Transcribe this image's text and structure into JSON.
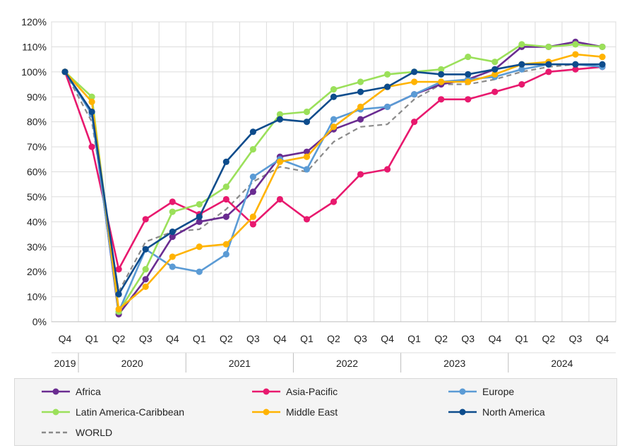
{
  "chart_data": {
    "type": "line",
    "ylim": [
      0,
      120
    ],
    "ytick_labels": [
      "0%",
      "10%",
      "20%",
      "30%",
      "40%",
      "50%",
      "60%",
      "70%",
      "80%",
      "90%",
      "100%",
      "110%",
      "120%"
    ],
    "quarter_labels": [
      "Q4",
      "Q1",
      "Q2",
      "Q3",
      "Q4",
      "Q1",
      "Q2",
      "Q3",
      "Q4",
      "Q1",
      "Q2",
      "Q3",
      "Q4",
      "Q1",
      "Q2",
      "Q3",
      "Q4",
      "Q1",
      "Q2",
      "Q3",
      "Q4"
    ],
    "year_labels": [
      "2019",
      "2020",
      "2021",
      "2022",
      "2023",
      "2024"
    ],
    "grid": true,
    "legend_position": "bottom",
    "series": [
      {
        "name": "Africa",
        "color": "#6a2c91",
        "dashed": false,
        "marker": true,
        "values": [
          100,
          84,
          3,
          17,
          34,
          40,
          42,
          52,
          66,
          68,
          77,
          81,
          86,
          91,
          95,
          97,
          101,
          110,
          110,
          112,
          110
        ]
      },
      {
        "name": "Asia-Pacific",
        "color": "#e8196e",
        "dashed": false,
        "marker": true,
        "values": [
          100,
          70,
          21,
          41,
          48,
          43,
          49,
          39,
          49,
          41,
          48,
          59,
          61,
          80,
          89,
          89,
          92,
          95,
          100,
          101,
          102
        ]
      },
      {
        "name": "Europe",
        "color": "#5b9bd5",
        "dashed": false,
        "marker": true,
        "values": [
          100,
          83,
          4,
          29,
          22,
          20,
          27,
          58,
          65,
          61,
          81,
          85,
          86,
          91,
          96,
          97,
          98,
          101,
          103,
          103,
          102
        ]
      },
      {
        "name": "Latin America-Caribbean",
        "color": "#9be05a",
        "dashed": false,
        "marker": true,
        "values": [
          100,
          90,
          4,
          21,
          44,
          47,
          54,
          69,
          83,
          84,
          93,
          96,
          99,
          100,
          101,
          106,
          104,
          111,
          110,
          111,
          110
        ]
      },
      {
        "name": "Middle East",
        "color": "#ffb300",
        "dashed": false,
        "marker": true,
        "values": [
          100,
          88,
          5,
          14,
          26,
          30,
          31,
          42,
          64,
          66,
          78,
          86,
          94,
          96,
          96,
          96,
          99,
          103,
          104,
          107,
          106
        ]
      },
      {
        "name": "North America",
        "color": "#0d4c8c",
        "dashed": false,
        "marker": true,
        "values": [
          100,
          84,
          11,
          29,
          36,
          42,
          64,
          76,
          81,
          80,
          90,
          92,
          94,
          100,
          99,
          99,
          101,
          103,
          103,
          103,
          103
        ]
      },
      {
        "name": "WORLD",
        "color": "#8a8a8a",
        "dashed": true,
        "marker": false,
        "values": [
          100,
          80,
          12,
          32,
          36,
          37,
          45,
          56,
          62,
          60,
          72,
          78,
          79,
          89,
          95,
          95,
          97,
          100,
          102,
          103,
          103
        ]
      }
    ]
  }
}
